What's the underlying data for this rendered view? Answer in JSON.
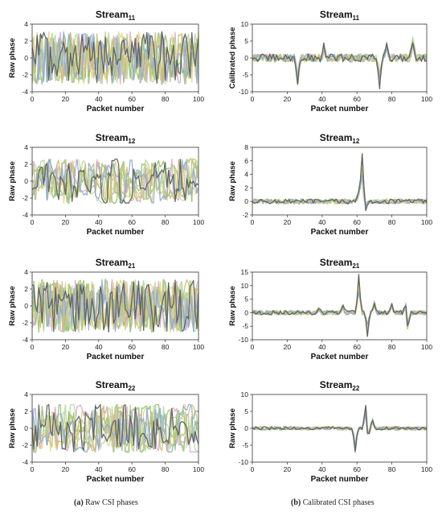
{
  "captions": {
    "left_letter": "(a)",
    "left_text": " Raw CSI phases",
    "right_letter": "(b)",
    "right_text": " Calibrated CSI phases"
  },
  "series_colors": [
    "#5a5a5a",
    "#8fa8d8",
    "#c9c070",
    "#b6d6a0",
    "#e6d48a",
    "#d8a8c8",
    "#90c068",
    "#a8c888"
  ],
  "chart_data": [
    {
      "id": "raw-s11",
      "type": "line",
      "panel": "left",
      "row": 0,
      "title": "Stream",
      "title_sub": "11",
      "xlabel": "Packet number",
      "ylabel": "Raw phase",
      "xlim": [
        0,
        100
      ],
      "ylim": [
        -4,
        4
      ],
      "xticks": [
        0,
        20,
        40,
        60,
        80,
        100
      ],
      "yticks": [
        4,
        2,
        0,
        -2,
        -4
      ],
      "y_tick_labels": [
        "4",
        "2",
        "0",
        "-2",
        "-4"
      ],
      "grid": false,
      "legend": "none",
      "num_series": 8,
      "profile": {
        "kind": "raw",
        "amp": 3.1,
        "density": 1.0
      }
    },
    {
      "id": "cal-s11",
      "type": "line",
      "panel": "right",
      "row": 0,
      "title": "Stream",
      "title_sub": "11",
      "xlabel": "Packet number",
      "ylabel": "Calibrated phase",
      "xlim": [
        0,
        100
      ],
      "ylim": [
        -10,
        10
      ],
      "xticks": [
        0,
        20,
        40,
        60,
        80,
        100
      ],
      "yticks": [
        10,
        5,
        0,
        -5,
        -10
      ],
      "y_tick_labels": [
        "10",
        "5",
        "0",
        "-5",
        "-10"
      ],
      "grid": false,
      "legend": "none",
      "num_series": 8,
      "profile": {
        "kind": "cal",
        "base": 1.2,
        "spikes": [
          {
            "x": 26,
            "y": -7.5
          },
          {
            "x": 73,
            "y": -8
          },
          {
            "x": 77,
            "y": 5
          },
          {
            "x": 92,
            "y": 5.5
          },
          {
            "x": 41,
            "y": 3.5
          }
        ]
      }
    },
    {
      "id": "raw-s12",
      "type": "line",
      "panel": "left",
      "row": 1,
      "title": "Stream",
      "title_sub": "12",
      "xlabel": "Packet number",
      "ylabel": "Raw phase",
      "xlim": [
        0,
        100
      ],
      "ylim": [
        -4,
        4
      ],
      "xticks": [
        0,
        20,
        40,
        60,
        80,
        100
      ],
      "yticks": [
        4,
        2,
        0,
        -2,
        -4
      ],
      "y_tick_labels": [
        "4",
        "2",
        "0",
        "-2",
        "-4"
      ],
      "grid": false,
      "legend": "none",
      "num_series": 8,
      "profile": {
        "kind": "raw",
        "amp": 2.6,
        "density": 0.55
      }
    },
    {
      "id": "cal-s12",
      "type": "line",
      "panel": "right",
      "row": 1,
      "title": "Stream",
      "title_sub": "12",
      "xlabel": "Packet number",
      "ylabel": "Raw phase",
      "xlim": [
        0,
        100
      ],
      "ylim": [
        -2,
        8
      ],
      "xticks": [
        0,
        20,
        40,
        60,
        80,
        100
      ],
      "yticks": [
        8,
        6,
        4,
        2,
        0,
        -2
      ],
      "y_tick_labels": [
        "8",
        "6",
        "4",
        "2",
        "0",
        "-2"
      ],
      "grid": false,
      "legend": "none",
      "num_series": 8,
      "profile": {
        "kind": "cal",
        "base": 0.35,
        "spikes": [
          {
            "x": 63,
            "y": 6.8
          },
          {
            "x": 65,
            "y": -1.2
          },
          {
            "x": 61,
            "y": 1.5
          }
        ]
      }
    },
    {
      "id": "raw-s21",
      "type": "line",
      "panel": "left",
      "row": 2,
      "title": "Stream",
      "title_sub": "21",
      "xlabel": "Packet number",
      "ylabel": "Raw phase",
      "xlim": [
        0,
        100
      ],
      "ylim": [
        -4,
        4
      ],
      "xticks": [
        0,
        20,
        40,
        60,
        80,
        100
      ],
      "yticks": [
        4,
        2,
        0,
        -2,
        -4
      ],
      "y_tick_labels": [
        "4",
        "2",
        "0",
        "-2",
        "-4"
      ],
      "grid": false,
      "legend": "none",
      "num_series": 8,
      "profile": {
        "kind": "raw",
        "amp": 3.1,
        "density": 1.0
      }
    },
    {
      "id": "cal-s21",
      "type": "line",
      "panel": "right",
      "row": 2,
      "title": "Stream",
      "title_sub": "21",
      "xlabel": "Packet number",
      "ylabel": "Raw phase",
      "xlim": [
        0,
        100
      ],
      "ylim": [
        -10,
        15
      ],
      "xticks": [
        0,
        20,
        40,
        60,
        80,
        100
      ],
      "yticks": [
        15,
        10,
        5,
        0,
        -5,
        -10
      ],
      "y_tick_labels": [
        "15",
        "10",
        "5",
        "0",
        "-5",
        "-10"
      ],
      "grid": false,
      "legend": "none",
      "num_series": 8,
      "profile": {
        "kind": "cal",
        "base": 0.8,
        "spikes": [
          {
            "x": 61,
            "y": 13.5
          },
          {
            "x": 66,
            "y": -8.5
          },
          {
            "x": 70,
            "y": 4
          },
          {
            "x": 80,
            "y": 3
          },
          {
            "x": 88,
            "y": 5
          },
          {
            "x": 89,
            "y": -7
          },
          {
            "x": 38,
            "y": 2
          },
          {
            "x": 52,
            "y": 2.5
          }
        ]
      }
    },
    {
      "id": "raw-s22",
      "type": "line",
      "panel": "left",
      "row": 3,
      "title": "Stream",
      "title_sub": "22",
      "xlabel": "Packet number",
      "ylabel": "Raw phase",
      "xlim": [
        0,
        100
      ],
      "ylim": [
        -4,
        4
      ],
      "xticks": [
        0,
        20,
        40,
        60,
        80,
        100
      ],
      "yticks": [
        4,
        2,
        0,
        -2,
        -4
      ],
      "y_tick_labels": [
        "4",
        "2",
        "0",
        "-2",
        "-4"
      ],
      "grid": false,
      "legend": "none",
      "num_series": 8,
      "profile": {
        "kind": "raw",
        "amp": 2.8,
        "density": 0.6
      }
    },
    {
      "id": "cal-s22",
      "type": "line",
      "panel": "right",
      "row": 3,
      "title": "Stream",
      "title_sub": "22",
      "xlabel": "Packet number",
      "ylabel": "Raw phase",
      "xlim": [
        0,
        100
      ],
      "ylim": [
        -10,
        10
      ],
      "xticks": [
        0,
        20,
        40,
        60,
        80,
        100
      ],
      "yticks": [
        10,
        5,
        0,
        -5,
        -10
      ],
      "y_tick_labels": [
        "10",
        "5",
        "0",
        "-5",
        "-10"
      ],
      "grid": false,
      "legend": "none",
      "num_series": 8,
      "profile": {
        "kind": "cal",
        "base": 0.5,
        "spikes": [
          {
            "x": 59,
            "y": -7
          },
          {
            "x": 65,
            "y": 8
          },
          {
            "x": 66,
            "y": -4
          },
          {
            "x": 69,
            "y": 2.5
          }
        ]
      }
    }
  ]
}
